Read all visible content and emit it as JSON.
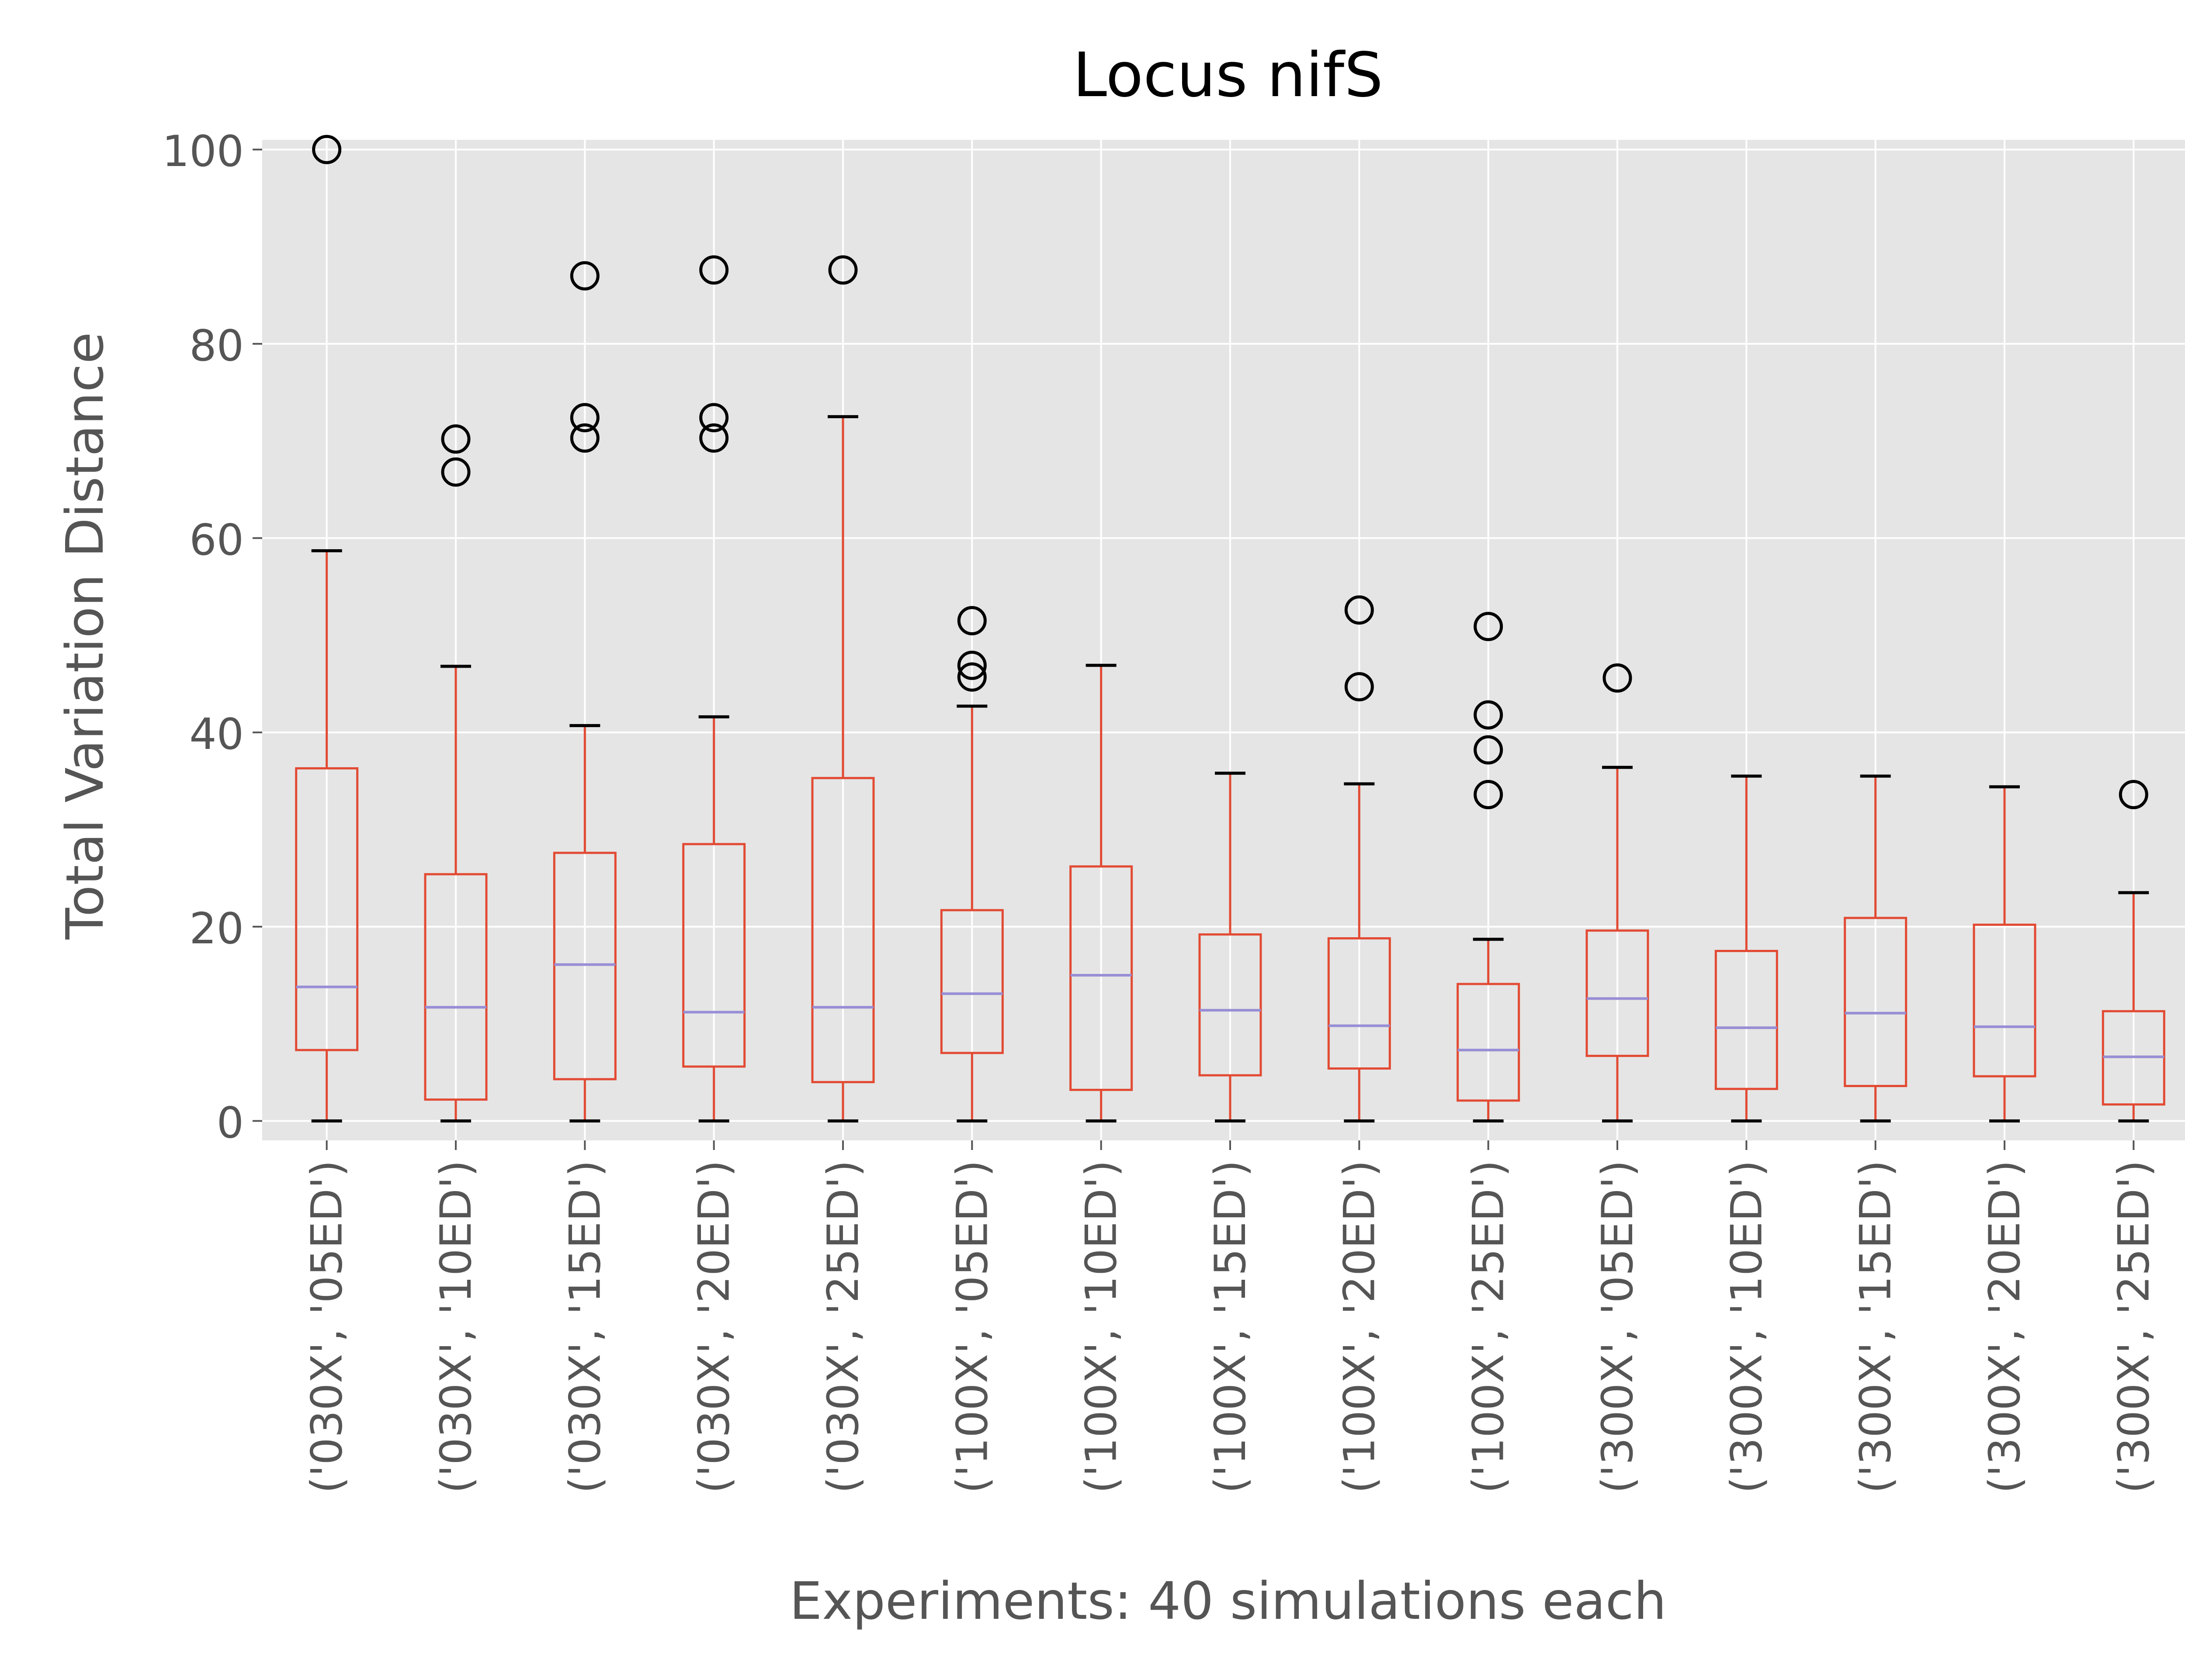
{
  "chart_data": {
    "type": "box",
    "title": "Locus nifS",
    "xlabel": "Experiments: 40 simulations each",
    "ylabel": "Total Variation Distance",
    "ylim": [
      -2,
      101
    ],
    "yticks": [
      0,
      20,
      40,
      60,
      80,
      100
    ],
    "grid": true,
    "colors": {
      "background": "#e5e5e5",
      "grid": "#ffffff",
      "box": "#e24a33",
      "median": "#988ed5",
      "cap": "#000000",
      "flier": "#000000",
      "text": "#555555",
      "title": "#000000"
    },
    "categories": [
      "('030X', '05ED')",
      "('030X', '10ED')",
      "('030X', '15ED')",
      "('030X', '20ED')",
      "('030X', '25ED')",
      "('100X', '05ED')",
      "('100X', '10ED')",
      "('100X', '15ED')",
      "('100X', '20ED')",
      "('100X', '25ED')",
      "('300X', '05ED')",
      "('300X', '10ED')",
      "('300X', '15ED')",
      "('300X', '20ED')",
      "('300X', '25ED')"
    ],
    "boxes": [
      {
        "whislo": 0,
        "q1": 7.3,
        "med": 13.8,
        "q3": 36.3,
        "whishi": 58.7,
        "fliers": [
          100
        ]
      },
      {
        "whislo": 0,
        "q1": 2.2,
        "med": 11.7,
        "q3": 25.4,
        "whishi": 46.8,
        "fliers": [
          66.8,
          70.2
        ]
      },
      {
        "whislo": 0,
        "q1": 4.3,
        "med": 16.1,
        "q3": 27.6,
        "whishi": 40.7,
        "fliers": [
          70.3,
          72.4,
          87.0
        ]
      },
      {
        "whislo": 0,
        "q1": 5.6,
        "med": 11.2,
        "q3": 28.5,
        "whishi": 41.6,
        "fliers": [
          70.3,
          72.4,
          87.6
        ]
      },
      {
        "whislo": 0,
        "q1": 4.0,
        "med": 11.7,
        "q3": 35.3,
        "whishi": 72.5,
        "fliers": [
          87.6
        ]
      },
      {
        "whislo": 0,
        "q1": 7.0,
        "med": 13.1,
        "q3": 21.7,
        "whishi": 42.7,
        "fliers": [
          45.7,
          46.9,
          51.5
        ]
      },
      {
        "whislo": 0,
        "q1": 3.2,
        "med": 15.0,
        "q3": 26.2,
        "whishi": 46.9,
        "fliers": []
      },
      {
        "whislo": 0,
        "q1": 4.7,
        "med": 11.4,
        "q3": 19.2,
        "whishi": 35.8,
        "fliers": []
      },
      {
        "whislo": 0,
        "q1": 5.4,
        "med": 9.8,
        "q3": 18.8,
        "whishi": 34.7,
        "fliers": [
          44.7,
          52.6
        ]
      },
      {
        "whislo": 0,
        "q1": 2.1,
        "med": 7.3,
        "q3": 14.1,
        "whishi": 18.7,
        "fliers": [
          33.6,
          38.2,
          41.8,
          50.9
        ]
      },
      {
        "whislo": 0,
        "q1": 6.7,
        "med": 12.6,
        "q3": 19.6,
        "whishi": 36.4,
        "fliers": [
          45.6
        ]
      },
      {
        "whislo": 0,
        "q1": 3.3,
        "med": 9.6,
        "q3": 17.5,
        "whishi": 35.5,
        "fliers": []
      },
      {
        "whislo": 0,
        "q1": 3.6,
        "med": 11.1,
        "q3": 20.9,
        "whishi": 35.5,
        "fliers": []
      },
      {
        "whislo": 0,
        "q1": 4.6,
        "med": 9.7,
        "q3": 20.2,
        "whishi": 34.4,
        "fliers": []
      },
      {
        "whislo": 0,
        "q1": 1.7,
        "med": 6.6,
        "q3": 11.3,
        "whishi": 23.5,
        "fliers": [
          33.6
        ]
      }
    ]
  }
}
